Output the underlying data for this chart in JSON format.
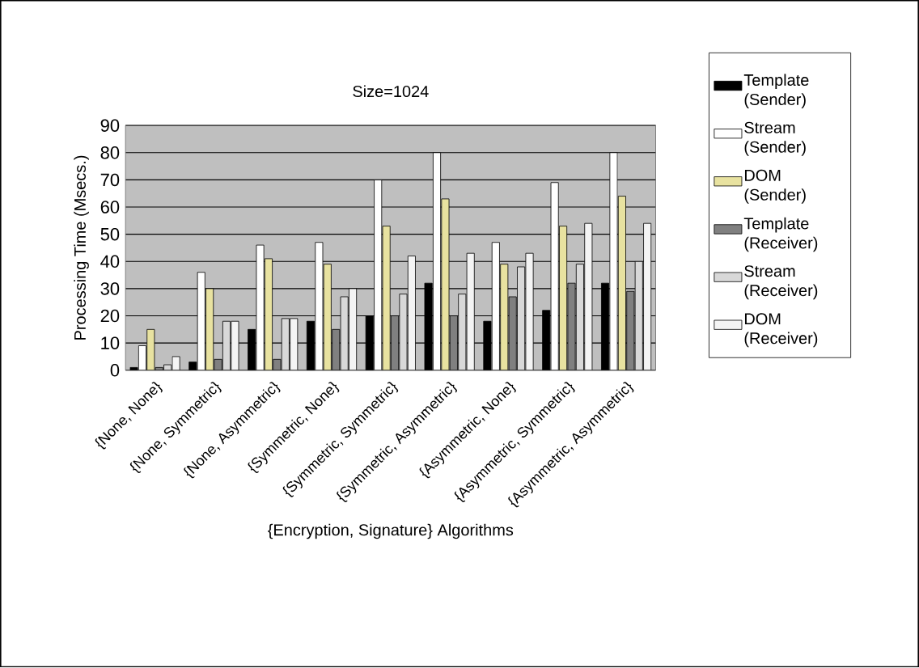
{
  "chart_data": {
    "type": "bar",
    "title": "Size=1024",
    "xlabel": "{Encryption, Signature} Algorithms",
    "ylabel": "Processing Time (Msecs.)",
    "categories": [
      "{None, None}",
      "{None, Symmetric}",
      "{None, Asymmetric}",
      "{Symmetric, None}",
      "{Symmetric, Symmetric}",
      "{Symmetric, Asymmetric}",
      "{Asymmetric, None}",
      "{Asymmetric, Symmetric}",
      "{Asymmetric, Asymmetric}"
    ],
    "series": [
      {
        "name": "Template (Sender)",
        "color": "#000000",
        "values": [
          1,
          3,
          15,
          18,
          20,
          32,
          18,
          22,
          32
        ]
      },
      {
        "name": "Stream (Sender)",
        "color": "#ffffff",
        "values": [
          9,
          36,
          46,
          47,
          70,
          80,
          47,
          69,
          80
        ]
      },
      {
        "name": "DOM (Sender)",
        "color": "#e8e2a0",
        "values": [
          15,
          30,
          41,
          39,
          53,
          63,
          39,
          53,
          64
        ]
      },
      {
        "name": "Template (Receiver)",
        "color": "#808080",
        "values": [
          1,
          4,
          4,
          15,
          20,
          20,
          27,
          32,
          29
        ]
      },
      {
        "name": "Stream (Receiver)",
        "color": "#d8d8d8",
        "values": [
          2,
          18,
          19,
          27,
          28,
          28,
          38,
          39,
          40
        ]
      },
      {
        "name": "DOM (Receiver)",
        "color": "#f4f4f4",
        "values": [
          5,
          18,
          19,
          30,
          42,
          43,
          43,
          54,
          54
        ]
      }
    ],
    "ylim": [
      0,
      90
    ],
    "yticks": [
      0,
      10,
      20,
      30,
      40,
      50,
      60,
      70,
      80,
      90
    ],
    "grid": "y",
    "legend": "right"
  }
}
